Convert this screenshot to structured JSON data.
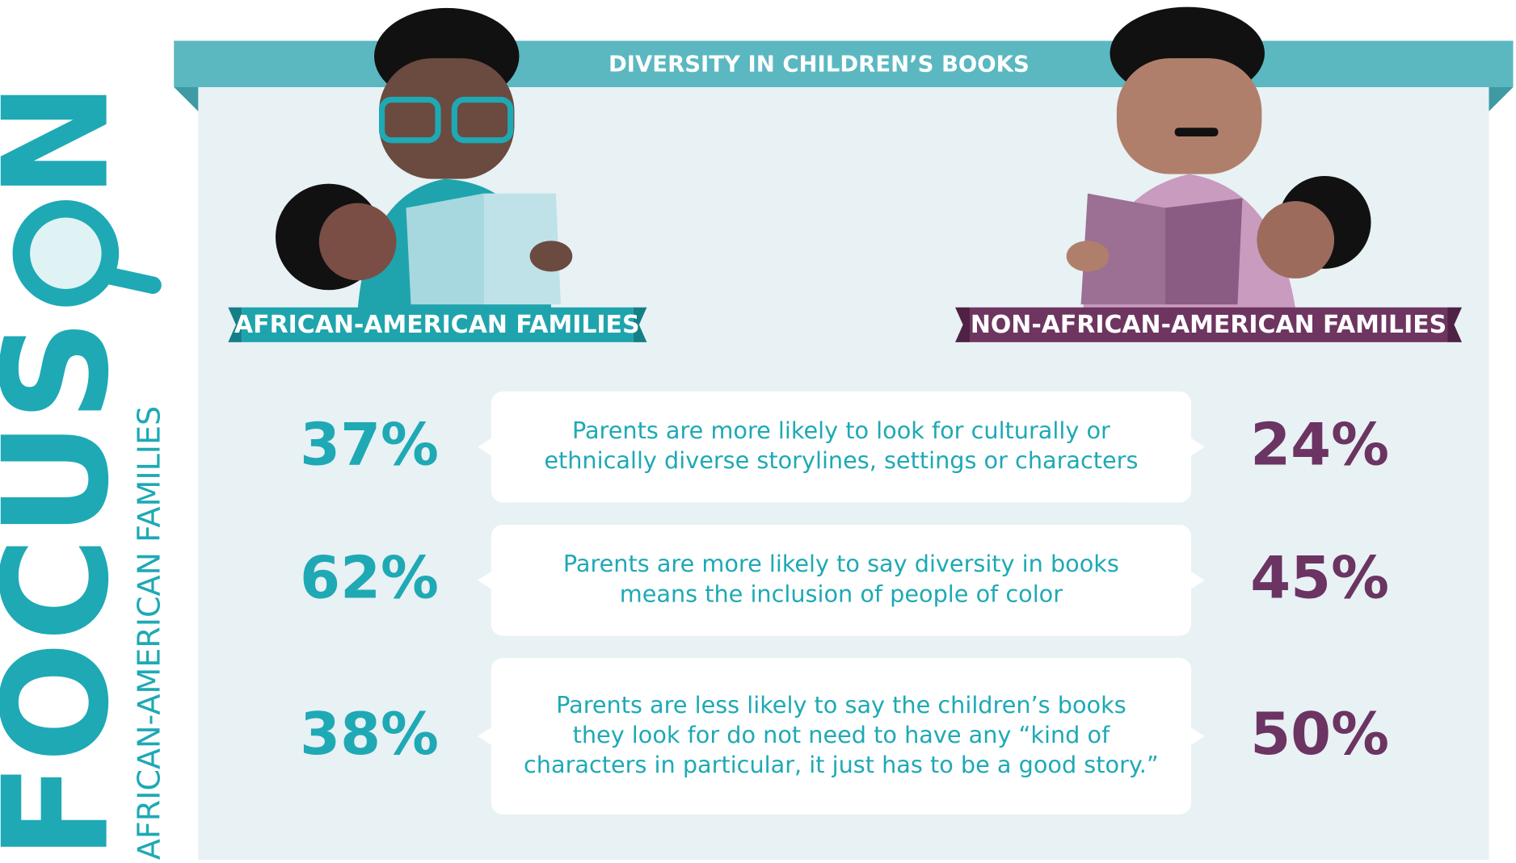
{
  "header": {
    "title": "DIVERSITY IN CHILDREN’S BOOKS"
  },
  "side": {
    "title_start": "FOCUS",
    "title_end": "N",
    "subtitle": "AFRICAN-AMERICAN FAMILIES"
  },
  "groups": {
    "left": "AFRICAN-AMERICAN FAMILIES",
    "right": "NON-AFRICAN-AMERICAN FAMILIES"
  },
  "rows": [
    {
      "left": "37%",
      "right": "24%",
      "lines": [
        "Parents are more likely to look for culturally or",
        "ethnically diverse  storylines, settings or characters"
      ]
    },
    {
      "left": "62%",
      "right": "45%",
      "lines": [
        "Parents are more likely to say diversity in books",
        "means the inclusion of people of color"
      ]
    },
    {
      "left": "38%",
      "right": "50%",
      "lines": [
        "Parents are less likely to say the children’s books",
        "they look for do not need to have any “kind of",
        "characters in particular, it just has to be a good story.”"
      ]
    }
  ]
}
